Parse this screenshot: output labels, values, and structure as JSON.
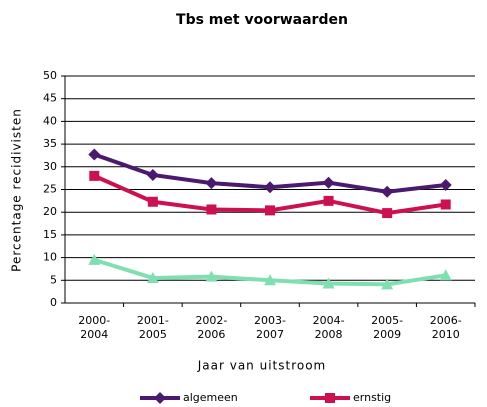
{
  "chart_data": {
    "type": "line",
    "title": "Tbs met voorwaarden",
    "x_label": "Jaar van uitstroom",
    "y_label": "Percentage recidivisten",
    "categories": [
      [
        "2000-",
        "2004"
      ],
      [
        "2001-",
        "2005"
      ],
      [
        "2002-",
        "2006"
      ],
      [
        "2003-",
        "2007"
      ],
      [
        "2004-",
        "2008"
      ],
      [
        "2005-",
        "2009"
      ],
      [
        "2006-",
        "2010"
      ]
    ],
    "series": [
      {
        "name": "algemeen",
        "color": "#4b1a6e",
        "marker": "diamond",
        "values": [
          32.7,
          28.2,
          26.4,
          25.5,
          26.5,
          24.5,
          26.0
        ]
      },
      {
        "name": "ernstig",
        "color": "#cc1051",
        "marker": "square",
        "values": [
          28.0,
          22.3,
          20.6,
          20.4,
          22.5,
          19.8,
          21.7
        ]
      },
      {
        "name": null,
        "color": "#7fdfb0",
        "marker": "triangle",
        "values": [
          9.5,
          5.5,
          5.8,
          5.0,
          4.3,
          4.1,
          6.1
        ]
      }
    ],
    "ylim": [
      0,
      50
    ],
    "yticks": [
      0,
      5,
      10,
      15,
      20,
      25,
      30,
      35,
      40,
      45,
      50
    ],
    "grid": true
  }
}
